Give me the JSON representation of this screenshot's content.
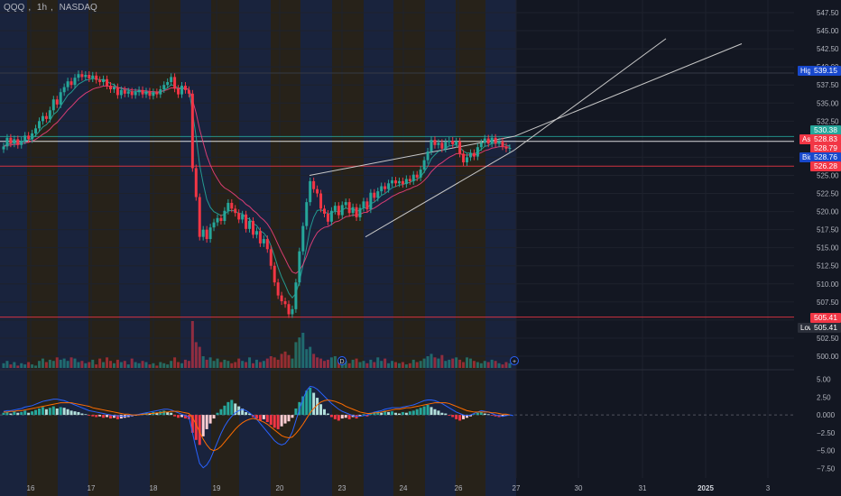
{
  "header": {
    "symbol": "QQQ",
    "interval": "1h",
    "exchange": "NASDAQ"
  },
  "chart_data": [
    {
      "type": "candlestick",
      "price_axis_ticks": [
        "547.50",
        "545.00",
        "542.50",
        "540.00",
        "537.50",
        "535.00",
        "532.50",
        "530.00",
        "527.50",
        "525.00",
        "522.50",
        "520.00",
        "517.50",
        "515.00",
        "512.50",
        "510.00",
        "507.50",
        "505.00",
        "502.50",
        "500.00"
      ],
      "x_ticks": [
        "16",
        "17",
        "18",
        "19",
        "20",
        "23",
        "24",
        "26",
        "27",
        "30",
        "31",
        "2025",
        "3"
      ],
      "price_labels": {
        "high_label": "High",
        "high": "539.15",
        "low_label": "Low",
        "low": "505.41",
        "resistance": "530.38",
        "ask_label": "Ask",
        "ask": "528.83",
        "last": "528.79",
        "bid_label": "Bid",
        "bid": "528.76",
        "support_1": "526.28",
        "support_2": "505.41"
      },
      "session_markers": [
        "D",
        "+"
      ],
      "hlines": [
        {
          "price": 530.38,
          "color": "#26a69a"
        },
        {
          "price": 529.7,
          "color": "#ffffff"
        },
        {
          "price": 526.28,
          "color": "#f23645"
        },
        {
          "price": 505.41,
          "color": "#f23645"
        }
      ],
      "closes": [
        529.0,
        530.2,
        529.4,
        530.0,
        529.2,
        529.8,
        530.5,
        530.0,
        530.8,
        531.5,
        532.5,
        533.2,
        532.8,
        534.0,
        535.5,
        534.8,
        536.5,
        537.2,
        538.0,
        537.5,
        538.5,
        539.0,
        538.6,
        538.9,
        538.4,
        538.8,
        538.2,
        537.9,
        538.3,
        537.4,
        536.9,
        537.2,
        536.1,
        536.8,
        536.3,
        536.6,
        536.1,
        536.5,
        536.8,
        536.2,
        536.6,
        536.0,
        536.5,
        536.2,
        536.9,
        537.5,
        537.9,
        538.6,
        537.0,
        536.2,
        537.4,
        536.8,
        536.3,
        526.0,
        522.0,
        516.5,
        517.5,
        516.2,
        517.8,
        518.5,
        519.1,
        518.7,
        520.1,
        521.2,
        520.4,
        519.8,
        518.9,
        519.6,
        517.6,
        518.7,
        516.8,
        517.3,
        515.6,
        516.2,
        514.8,
        512.5,
        510.2,
        508.4,
        507.6,
        507.2,
        505.8,
        506.5,
        510.2,
        514.5,
        518.0,
        521.3,
        524.2,
        523.1,
        522.5,
        520.4,
        519.7,
        518.6,
        520.1,
        520.8,
        519.5,
        520.9,
        521.3,
        519.8,
        520.6,
        519.2,
        520.5,
        521.4,
        520.3,
        522.6,
        521.9,
        522.8,
        523.5,
        523.1,
        523.9,
        524.3,
        523.9,
        524.2,
        523.8,
        524.5,
        524.2,
        525.1,
        524.7,
        525.8,
        527.1,
        528.3,
        529.9,
        529.2,
        529.5,
        528.7,
        529.6,
        529.8,
        529.3,
        529.7,
        528.0,
        526.8,
        527.5,
        528.1,
        527.6,
        528.9,
        529.5,
        530.1,
        529.4,
        530.2,
        529.4,
        529.7,
        529.0,
        528.7,
        528.8
      ]
    },
    {
      "type": "bar",
      "name": "volume",
      "values": [
        4,
        6,
        3,
        5,
        2,
        4,
        3,
        5,
        3,
        2,
        6,
        8,
        5,
        7,
        6,
        9,
        7,
        8,
        6,
        9,
        8,
        5,
        6,
        4,
        5,
        7,
        3,
        8,
        5,
        9,
        6,
        4,
        7,
        5,
        6,
        3,
        8,
        5,
        4,
        6,
        5,
        3,
        4,
        2,
        5,
        4,
        3,
        6,
        9,
        5,
        4,
        7,
        6,
        40,
        22,
        18,
        10,
        7,
        9,
        6,
        8,
        5,
        7,
        6,
        4,
        5,
        8,
        6,
        5,
        9,
        4,
        7,
        5,
        6,
        8,
        10,
        9,
        7,
        12,
        14,
        11,
        8,
        22,
        26,
        30,
        16,
        18,
        12,
        9,
        8,
        6,
        7,
        9,
        10,
        5,
        8,
        6,
        4,
        7,
        8,
        5,
        6,
        4,
        7,
        5,
        9,
        6,
        8,
        4,
        6,
        5,
        4,
        5,
        3,
        4,
        7,
        5,
        6,
        8,
        10,
        12,
        9,
        8,
        11,
        6,
        7,
        8,
        9,
        7,
        5,
        9,
        8,
        6,
        5,
        4,
        6,
        5,
        7,
        6,
        4,
        3,
        5,
        4
      ]
    },
    {
      "type": "bar",
      "name": "macd",
      "yaxis_ticks": [
        "5.00",
        "2.50",
        "0.000",
        "−2.50",
        "−5.00",
        "−7.50"
      ],
      "histogram": [
        0.3,
        0.4,
        0.2,
        0.5,
        0.3,
        0.4,
        0.6,
        0.3,
        0.5,
        0.7,
        0.9,
        1.1,
        0.8,
        1.0,
        1.2,
        0.9,
        1.1,
        1.0,
        0.8,
        0.6,
        0.5,
        0.4,
        0.2,
        0.1,
        -0.1,
        -0.2,
        -0.3,
        -0.2,
        -0.4,
        -0.3,
        -0.5,
        -0.4,
        -0.6,
        -0.5,
        -0.4,
        -0.3,
        -0.2,
        -0.1,
        0.1,
        0.2,
        0.3,
        0.2,
        0.4,
        0.3,
        0.5,
        0.6,
        0.4,
        0.3,
        -0.2,
        -0.4,
        -0.3,
        -0.5,
        -0.6,
        -2.5,
        -3.5,
        -4.2,
        -3.0,
        -2.0,
        -1.2,
        -0.5,
        0.3,
        0.8,
        1.3,
        1.8,
        2.1,
        1.6,
        1.2,
        0.9,
        0.4,
        0.2,
        -0.3,
        -0.5,
        -0.8,
        -0.6,
        -1.0,
        -1.4,
        -1.8,
        -2.0,
        -1.6,
        -1.2,
        -0.9,
        -0.4,
        0.9,
        1.8,
        2.6,
        3.4,
        3.8,
        3.1,
        2.4,
        1.5,
        0.8,
        0.2,
        -0.3,
        -0.6,
        -0.8,
        -0.5,
        -0.4,
        -0.6,
        -0.3,
        -0.5,
        -0.2,
        0.1,
        -0.2,
        0.3,
        0.4,
        0.5,
        0.3,
        0.6,
        0.4,
        0.5,
        0.3,
        0.2,
        0.4,
        0.3,
        0.5,
        0.6,
        0.8,
        1.0,
        1.2,
        1.4,
        1.1,
        0.8,
        0.6,
        0.3,
        0.2,
        -0.1,
        -0.3,
        -0.6,
        -0.8,
        -0.6,
        -0.4,
        -0.2,
        0.1,
        0.3,
        0.4,
        0.2,
        0.1,
        -0.1,
        -0.2,
        -0.3,
        -0.2,
        -0.1
      ],
      "macd": [
        0.5,
        0.6,
        0.6,
        0.7,
        0.8,
        0.9,
        1.1,
        1.2,
        1.3,
        1.5,
        1.7,
        1.9,
        2.0,
        2.1,
        2.2,
        2.2,
        2.1,
        2.0,
        1.8,
        1.6,
        1.4,
        1.2,
        1.0,
        0.8,
        0.6,
        0.5,
        0.4,
        0.3,
        0.2,
        0.1,
        0.0,
        -0.1,
        -0.1,
        -0.2,
        -0.2,
        -0.1,
        -0.1,
        0.0,
        0.1,
        0.2,
        0.3,
        0.4,
        0.5,
        0.6,
        0.7,
        0.8,
        0.8,
        0.7,
        0.5,
        0.3,
        0.1,
        -0.1,
        -0.3,
        -2.5,
        -4.8,
        -6.8,
        -7.4,
        -7.0,
        -6.2,
        -5.0,
        -3.8,
        -2.6,
        -1.6,
        -0.8,
        -0.2,
        0.3,
        0.6,
        0.8,
        0.6,
        0.3,
        -0.1,
        -0.6,
        -1.2,
        -1.8,
        -2.4,
        -3.0,
        -3.6,
        -4.0,
        -4.2,
        -4.0,
        -3.4,
        -2.4,
        -0.8,
        0.8,
        2.2,
        3.4,
        4.0,
        3.9,
        3.6,
        3.1,
        2.6,
        2.1,
        1.6,
        1.2,
        0.8,
        0.5,
        0.3,
        0.1,
        -0.1,
        -0.2,
        -0.2,
        -0.1,
        0.0,
        0.2,
        0.4,
        0.5,
        0.6,
        0.8,
        0.9,
        1.0,
        1.0,
        1.0,
        1.1,
        1.2,
        1.3,
        1.4,
        1.6,
        1.8,
        2.0,
        2.1,
        2.1,
        2.0,
        1.8,
        1.6,
        1.3,
        1.0,
        0.7,
        0.4,
        0.2,
        0.0,
        -0.1,
        0.0,
        0.2,
        0.4,
        0.6,
        0.5,
        0.4,
        0.2,
        0.0,
        -0.1,
        -0.2,
        -0.1,
        0.0,
        -0.1
      ],
      "signal": [
        0.4,
        0.4,
        0.5,
        0.5,
        0.6,
        0.6,
        0.7,
        0.8,
        0.9,
        1.0,
        1.1,
        1.2,
        1.3,
        1.4,
        1.5,
        1.6,
        1.7,
        1.7,
        1.7,
        1.7,
        1.6,
        1.5,
        1.4,
        1.3,
        1.2,
        1.0,
        0.9,
        0.8,
        0.7,
        0.6,
        0.5,
        0.4,
        0.3,
        0.2,
        0.1,
        0.1,
        0.0,
        0.0,
        0.0,
        0.1,
        0.1,
        0.2,
        0.2,
        0.3,
        0.3,
        0.4,
        0.4,
        0.5,
        0.5,
        0.5,
        0.4,
        0.3,
        0.2,
        -0.4,
        -1.3,
        -2.4,
        -3.4,
        -4.2,
        -4.8,
        -5.0,
        -4.8,
        -4.4,
        -3.8,
        -3.2,
        -2.6,
        -2.0,
        -1.5,
        -1.1,
        -0.8,
        -0.6,
        -0.5,
        -0.6,
        -0.8,
        -1.0,
        -1.3,
        -1.7,
        -2.1,
        -2.5,
        -2.9,
        -3.1,
        -3.2,
        -3.1,
        -2.6,
        -2.0,
        -1.3,
        -0.5,
        0.3,
        0.9,
        1.4,
        1.8,
        2.0,
        2.1,
        2.0,
        1.9,
        1.7,
        1.5,
        1.2,
        1.0,
        0.8,
        0.6,
        0.4,
        0.3,
        0.2,
        0.2,
        0.3,
        0.3,
        0.4,
        0.5,
        0.6,
        0.7,
        0.8,
        0.8,
        0.9,
        1.0,
        1.0,
        1.1,
        1.2,
        1.3,
        1.4,
        1.5,
        1.6,
        1.7,
        1.7,
        1.7,
        1.7,
        1.6,
        1.4,
        1.2,
        1.0,
        0.8,
        0.6,
        0.5,
        0.4,
        0.4,
        0.4,
        0.4,
        0.4,
        0.3,
        0.3,
        0.2,
        0.1,
        0.1,
        0.0
      ]
    }
  ],
  "colors": {
    "up": "#26a69a",
    "down": "#f23645",
    "background": "#131722",
    "grid": "#1e222d",
    "ema_fast": "#26a69a",
    "ema_slow": "#ec407a",
    "macd_line": "#2962ff",
    "signal_line": "#ff6d00",
    "session_blue": "#1b2540",
    "session_orange": "#2a2418",
    "axis_text": "#b2b5be",
    "label_blue": "#1848cc"
  }
}
